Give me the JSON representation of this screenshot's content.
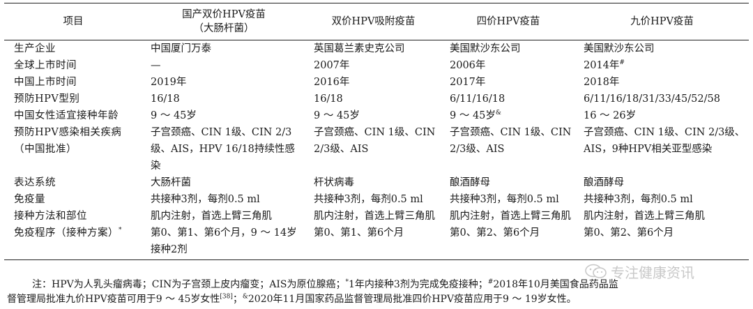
{
  "table": {
    "headers": [
      "项目",
      "国产双价HPV疫苗（大肠杆菌）",
      "双价HPV吸附疫苗",
      "四价HPV疫苗",
      "九价HPV疫苗"
    ],
    "header_line1_col1": "国产双价HPV疫苗",
    "header_line2_col1": "（大肠杆菌）",
    "rows": [
      {
        "label": "生产企业",
        "cells": [
          "中国厦门万泰",
          "英国葛兰素史克公司",
          "美国默沙东公司",
          "美国默沙东公司"
        ]
      },
      {
        "label": "全球上市时间",
        "cells": [
          "—",
          "2007年",
          "2006年",
          "2014年"
        ],
        "sup": "#"
      },
      {
        "label": "中国上市时间",
        "cells": [
          "2019年",
          "2016年",
          "2017年",
          "2018年"
        ]
      },
      {
        "label": "预防HPV型别",
        "cells": [
          "16/18",
          "16/18",
          "6/11/16/18",
          "6/11/16/18/31/33/45/52/58"
        ]
      },
      {
        "label": "中国女性适宜接种年龄",
        "cells": [
          "9 ～ 45岁",
          "9 ～ 45岁",
          "9 ～ 45岁",
          "16 ～ 26岁"
        ],
        "sup": "&"
      },
      {
        "label": "预防HPV感染相关疾病（中国批准）",
        "cells": [
          "子宫颈癌、CIN 1级、CIN 2/3级、AIS，HPV 16/18持续性感染",
          "子宫颈癌、CIN 1级、CIN 2/3级、AIS",
          "子宫颈癌、CIN 1级、CIN 2/3级、AIS",
          "子宫颈癌、CIN 1级、CIN 2/3级、AIS，9种HPV相关亚型感染"
        ]
      },
      {
        "label": "表达系统",
        "cells": [
          "大肠杆菌",
          "杆状病毒",
          "酿酒酵母",
          "酿酒酵母"
        ]
      },
      {
        "label": "免疫量",
        "cells": [
          "共接种3剂，每剂0.5 ml",
          "共接种3剂，每剂0.5 ml",
          "共接种3剂，每剂0.5 ml",
          "共接种3剂，每剂0.5 ml"
        ]
      },
      {
        "label": "接种方法和部位",
        "cells": [
          "肌内注射，首选上臂三角肌",
          "肌内注射，首选上臂三角肌",
          "肌内注射，首选上臂三角肌",
          "肌内注射，首选上臂三角肌"
        ]
      },
      {
        "label": "免疫程序（接种方案）",
        "sup": "*",
        "cells": [
          "第0、第1、第6个月，9 ～ 14岁接种2剂",
          "第0、第1、第6个月",
          "第0、第2、第6个月",
          "第0、第2、第6个月"
        ]
      }
    ]
  },
  "note": {
    "line1": "注：HPV为人乳头瘤病毒；CIN为子宫颈上皮内瘤变；AIS为原位腺癌；",
    "line1_sup1": "*",
    "line1b": "1年内接种3剂为完成免疫接种；",
    "line1_sup2": "#",
    "line1c": "2018年10月美国食品药品监",
    "line2": "督管理局批准九价HPV疫苗可用于9 ～ 45岁女性",
    "ref": "[38]",
    "line2b": "；",
    "line2_sup": "&",
    "line2c": "2020年11月国家药品监督管理局批准四价HPV疫苗应用于9 ～ 19岁女性。"
  },
  "watermark": {
    "text": "专注健康资讯",
    "icon": "wechat-icon"
  }
}
